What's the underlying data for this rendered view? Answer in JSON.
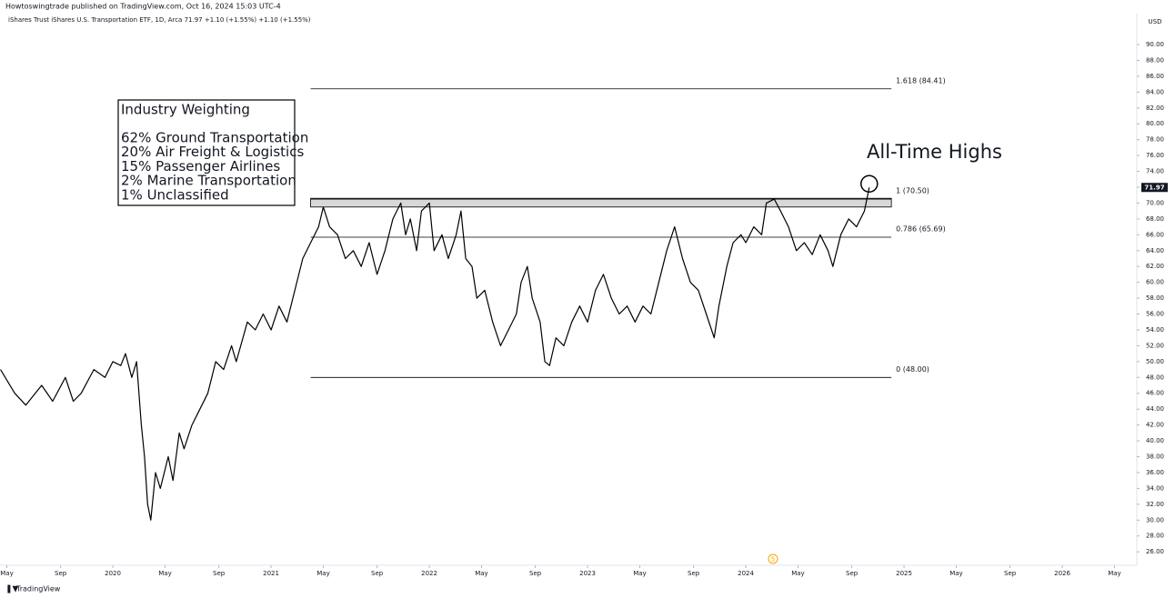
{
  "header": "Howtoswingtrade published on TradingView.com, Oct 16, 2024 15:03 UTC-4",
  "legend_text": "iShares Trust iShares U.S. Transportation ETF, 1D, Arca  71.97  +1.10 (+1.55%)  +1.10 (+1.55%)",
  "currency": "USD",
  "footer": "TradingView",
  "chart_data": {
    "type": "line",
    "color": "#000000",
    "grid": false,
    "x": [
      2019.29,
      2019.38,
      2019.45,
      2019.55,
      2019.62,
      2019.7,
      2019.75,
      2019.8,
      2019.88,
      2019.95,
      2020.0,
      2020.05,
      2020.08,
      2020.12,
      2020.15,
      2020.18,
      2020.2,
      2020.22,
      2020.24,
      2020.27,
      2020.3,
      2020.35,
      2020.38,
      2020.42,
      2020.45,
      2020.5,
      2020.55,
      2020.6,
      2020.65,
      2020.7,
      2020.75,
      2020.78,
      2020.85,
      2020.9,
      2020.95,
      2021.0,
      2021.05,
      2021.1,
      2021.15,
      2021.2,
      2021.25,
      2021.3,
      2021.33,
      2021.37,
      2021.42,
      2021.47,
      2021.52,
      2021.57,
      2021.62,
      2021.67,
      2021.72,
      2021.77,
      2021.82,
      2021.85,
      2021.88,
      2021.92,
      2021.95,
      2022.0,
      2022.03,
      2022.08,
      2022.12,
      2022.17,
      2022.2,
      2022.23,
      2022.27,
      2022.3,
      2022.35,
      2022.4,
      2022.45,
      2022.5,
      2022.55,
      2022.58,
      2022.62,
      2022.65,
      2022.7,
      2022.73,
      2022.76,
      2022.8,
      2022.85,
      2022.9,
      2022.95,
      2023.0,
      2023.05,
      2023.1,
      2023.15,
      2023.2,
      2023.25,
      2023.3,
      2023.35,
      2023.4,
      2023.45,
      2023.5,
      2023.55,
      2023.6,
      2023.65,
      2023.7,
      2023.75,
      2023.8,
      2023.83,
      2023.88,
      2023.92,
      2023.97,
      2024.0,
      2024.05,
      2024.1,
      2024.13,
      2024.18,
      2024.22,
      2024.27,
      2024.32,
      2024.37,
      2024.42,
      2024.47,
      2024.52,
      2024.55,
      2024.6,
      2024.65,
      2024.7,
      2024.75,
      2024.78
    ],
    "values": [
      49,
      46,
      44.5,
      47,
      45,
      48,
      45,
      46,
      49,
      48,
      50,
      49.5,
      51,
      48,
      50,
      42,
      38,
      32,
      30,
      36,
      34,
      38,
      35,
      41,
      39,
      42,
      44,
      46,
      50,
      49,
      52,
      50,
      55,
      54,
      56,
      54,
      57,
      55,
      59,
      63,
      65,
      67,
      69.5,
      67,
      66,
      63,
      64,
      62,
      65,
      61,
      64,
      68,
      70,
      66,
      68,
      64,
      69,
      70,
      64,
      66,
      63,
      66,
      69,
      63,
      62,
      58,
      59,
      55,
      52,
      54,
      56,
      60,
      62,
      58,
      55,
      50,
      49.5,
      53,
      52,
      55,
      57,
      55,
      59,
      61,
      58,
      56,
      57,
      55,
      57,
      56,
      60,
      64,
      67,
      63,
      60,
      59,
      56,
      53,
      57,
      62,
      65,
      66,
      65,
      67,
      66,
      70,
      70.5,
      69,
      67,
      64,
      65,
      63.5,
      66,
      64,
      62,
      66,
      68,
      67,
      69,
      71.97
    ],
    "xlim": [
      2019.287,
      2026.471
    ],
    "xticks": [
      {
        "value": 2019.33,
        "label": "May"
      },
      {
        "value": 2019.67,
        "label": "Sep"
      },
      2020,
      {
        "value": 2020.33,
        "label": "May"
      },
      {
        "value": 2020.67,
        "label": "Sep"
      },
      2021,
      {
        "value": 2021.33,
        "label": "May"
      },
      {
        "value": 2021.67,
        "label": "Sep"
      },
      2022,
      {
        "value": 2022.33,
        "label": "May"
      },
      {
        "value": 2022.67,
        "label": "Sep"
      },
      2023,
      {
        "value": 2023.33,
        "label": "May"
      },
      {
        "value": 2023.67,
        "label": "Sep"
      },
      2024,
      {
        "value": 2024.33,
        "label": "May"
      },
      {
        "value": 2024.67,
        "label": "Sep"
      },
      2025,
      {
        "value": 2025.33,
        "label": "May"
      },
      {
        "value": 2025.67,
        "label": "Sep"
      },
      2026,
      {
        "value": 2026.33,
        "label": "May"
      }
    ],
    "ylim": [
      24.3,
      93.9
    ],
    "yticks": [
      {
        "value": 26,
        "label": "26.00"
      },
      {
        "value": 28,
        "label": "28.00"
      },
      {
        "value": 30,
        "label": "30.00"
      },
      {
        "value": 32,
        "label": "32.00"
      },
      {
        "value": 34,
        "label": "34.00"
      },
      {
        "value": 36,
        "label": "36.00"
      },
      {
        "value": 38,
        "label": "38.00"
      },
      {
        "value": 40,
        "label": "40.00"
      },
      {
        "value": 42,
        "label": "42.00"
      },
      {
        "value": 44,
        "label": "44.00"
      },
      {
        "value": 46,
        "label": "46.00"
      },
      {
        "value": 48,
        "label": "48.00"
      },
      {
        "value": 50,
        "label": "50.00"
      },
      {
        "value": 52,
        "label": "52.00"
      },
      {
        "value": 54,
        "label": "54.00"
      },
      {
        "value": 56,
        "label": "56.00"
      },
      {
        "value": 58,
        "label": "58.00"
      },
      {
        "value": 60,
        "label": "60.00"
      },
      {
        "value": 62,
        "label": "62.00"
      },
      {
        "value": 64,
        "label": "64.00"
      },
      {
        "value": 66,
        "label": "66.00"
      },
      {
        "value": 68,
        "label": "68.00"
      },
      {
        "value": 70,
        "label": "70.00"
      },
      {
        "value": 72,
        "label": "72.00"
      },
      {
        "value": 74,
        "label": "74.00"
      },
      {
        "value": 76,
        "label": "76.00"
      },
      {
        "value": 78,
        "label": "78.00"
      },
      {
        "value": 80,
        "label": "80.00"
      },
      {
        "value": 82,
        "label": "82.00"
      },
      {
        "value": 84,
        "label": "84.00"
      },
      {
        "value": 86,
        "label": "86.00"
      },
      {
        "value": 88,
        "label": "88.00"
      },
      {
        "value": 90,
        "label": "90.00"
      }
    ],
    "fib_start": 2021.25,
    "fib_end": 2024.92,
    "fib_levels": [
      {
        "value": 84.41,
        "label": "1.618 (84.41)"
      },
      {
        "value": 70.5,
        "label": "1 (70.50)"
      },
      {
        "value": 65.69,
        "label": "0.786 (65.69)"
      },
      {
        "value": 48,
        "label": "0 (48.00)"
      }
    ],
    "zone": [
      69.5,
      70.6
    ],
    "annotation": "All-Time Highs",
    "event_marker": "5",
    "industry_weighting": {
      "title": "Industry Weighting",
      "items": [
        "62% Ground Transportation",
        "20% Air Freight & Logistics",
        "15% Passenger Airlines",
        "2% Marine Transportation",
        "1% Unclassified"
      ]
    }
  }
}
